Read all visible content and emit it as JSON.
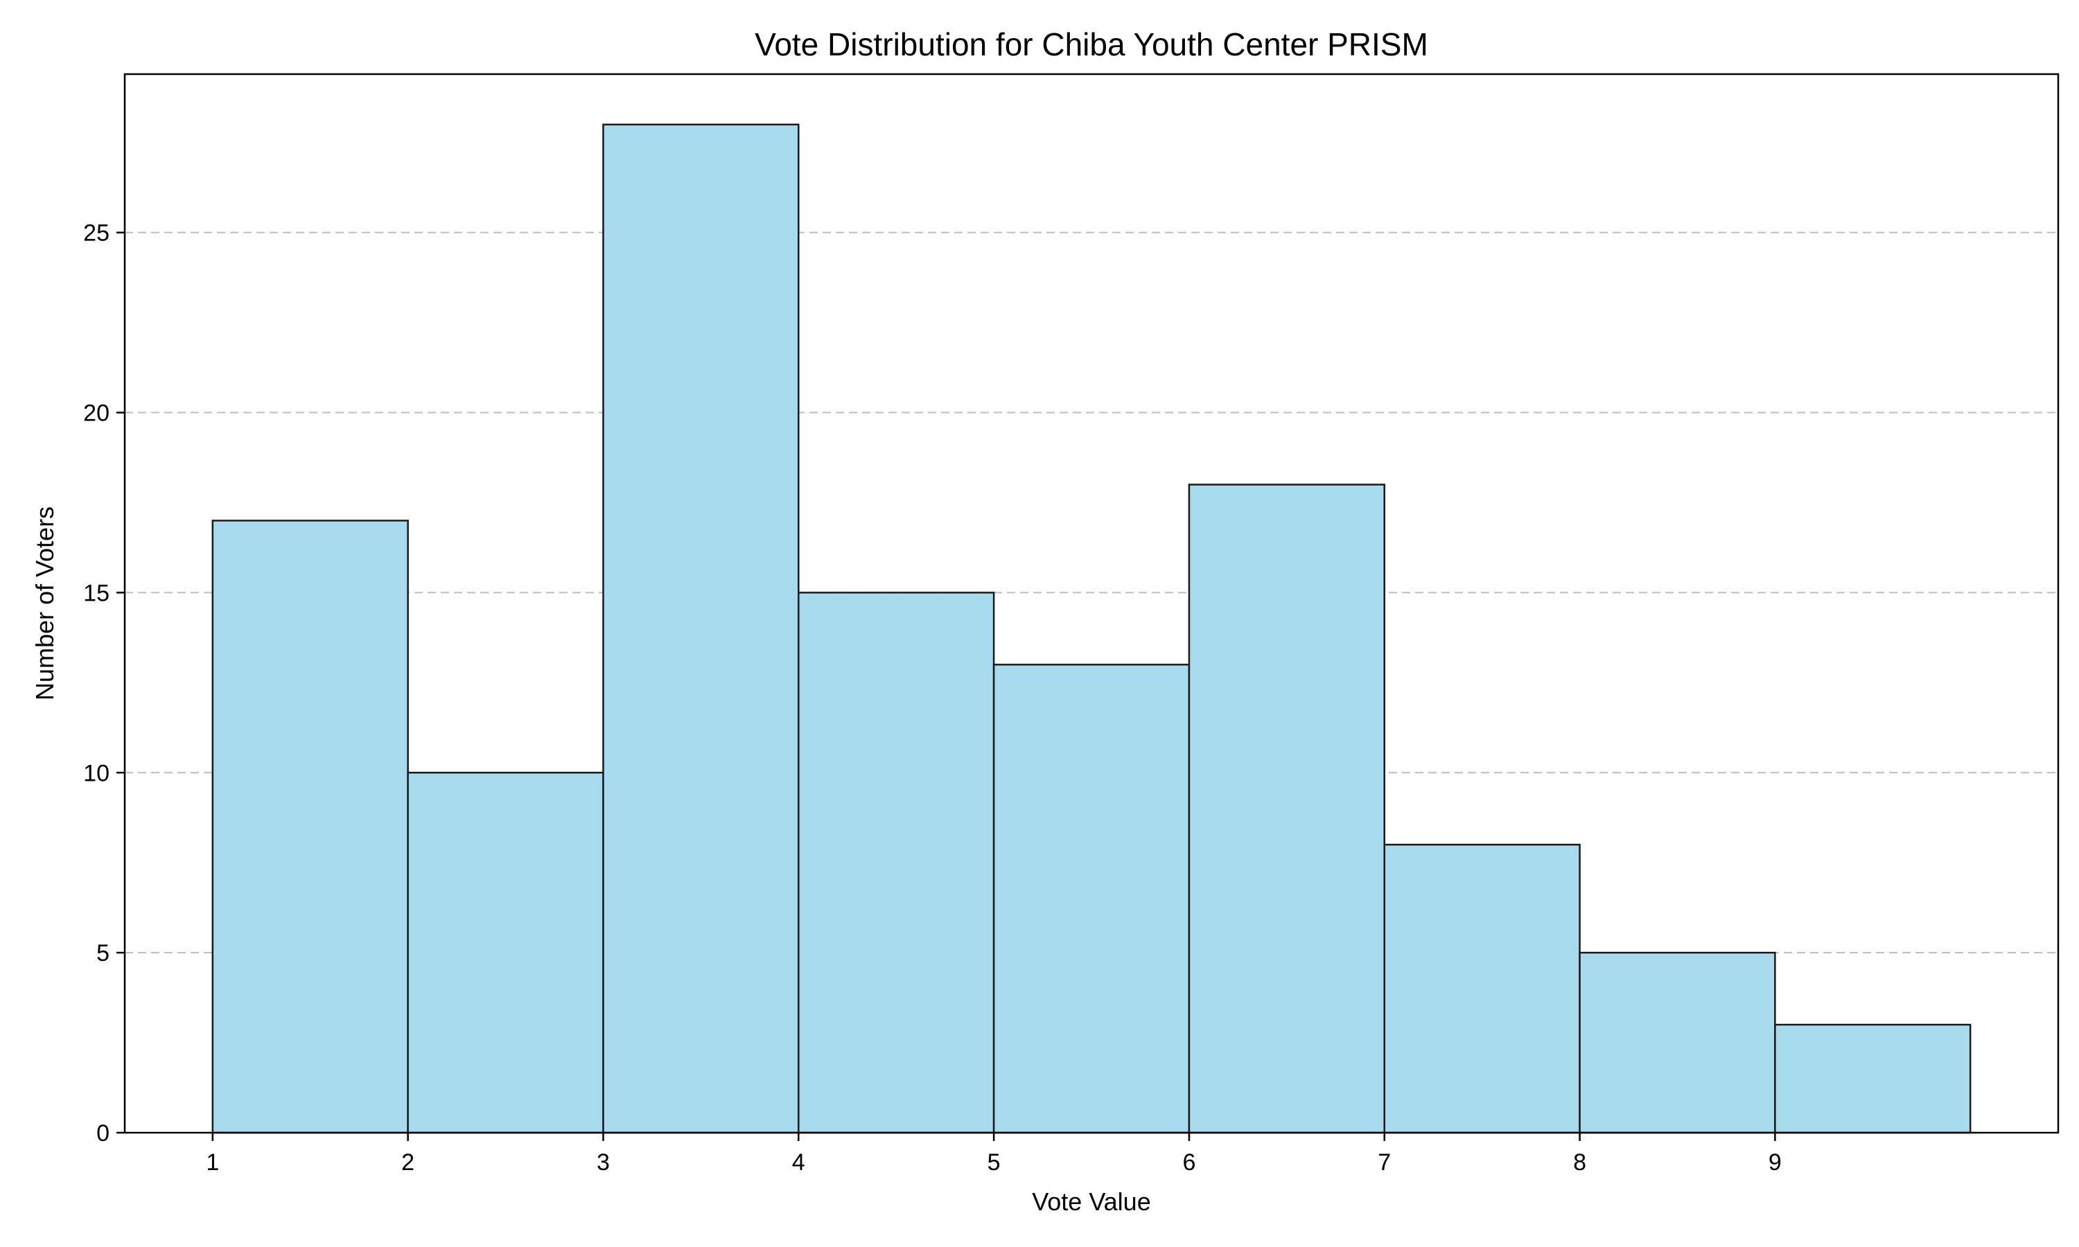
{
  "chart_data": {
    "type": "bar",
    "title": "Vote Distribution for Chiba Youth Center PRISM",
    "xlabel": "Vote Value",
    "ylabel": "Number of Voters",
    "bins": [
      {
        "start": 1,
        "end": 2,
        "value": 17
      },
      {
        "start": 2,
        "end": 3,
        "value": 10
      },
      {
        "start": 3,
        "end": 4,
        "value": 28
      },
      {
        "start": 4,
        "end": 5,
        "value": 15
      },
      {
        "start": 5,
        "end": 6,
        "value": 13
      },
      {
        "start": 6,
        "end": 7,
        "value": 18
      },
      {
        "start": 7,
        "end": 8,
        "value": 8
      },
      {
        "start": 8,
        "end": 9,
        "value": 5
      },
      {
        "start": 9,
        "end": 10,
        "value": 3
      }
    ],
    "xticks": [
      1,
      2,
      3,
      4,
      5,
      6,
      7,
      8,
      9
    ],
    "yticks": [
      0,
      5,
      10,
      15,
      20,
      25
    ],
    "xlim": [
      0.55,
      10.45
    ],
    "ylim": [
      0,
      29.4
    ],
    "grid": "y-dashed",
    "bar_color": "#a8daed",
    "edge_color": "#1a1a1a",
    "grid_color": "#bdbdbd"
  }
}
